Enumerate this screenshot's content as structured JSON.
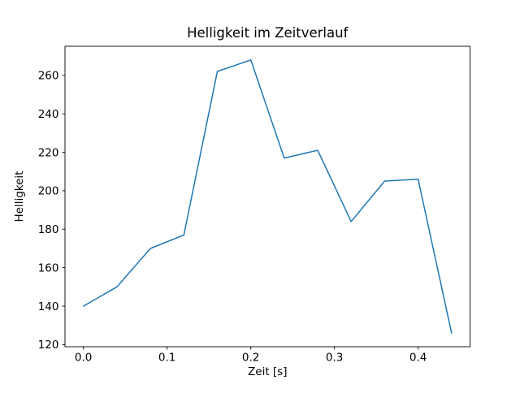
{
  "figure": {
    "background": "#ffffff",
    "plot_background": "#ffffff",
    "spine_color": "#000000",
    "text_color": "#000000"
  },
  "chart_data": {
    "type": "line",
    "title": "Helligkeit im Zeitverlauf",
    "xlabel": "Zeit [s]",
    "ylabel": "Helligkeit",
    "x": [
      0.0,
      0.04,
      0.08,
      0.12,
      0.16,
      0.2,
      0.24,
      0.28,
      0.32,
      0.36,
      0.4,
      0.44
    ],
    "y": [
      140,
      150,
      170,
      177,
      262,
      268,
      217,
      221,
      184,
      205,
      206,
      126
    ],
    "series_name": "Helligkeit",
    "line_color": "#1f77b4",
    "line_width": 1.5,
    "marker": "none",
    "grid": false,
    "legend_position": "none",
    "xlim": [
      -0.022,
      0.462
    ],
    "ylim": [
      118.9,
      275.1
    ],
    "x_ticks": {
      "values": [
        0.0,
        0.1,
        0.2,
        0.3,
        0.4
      ],
      "labels": [
        "0.0",
        "0.1",
        "0.2",
        "0.3",
        "0.4"
      ]
    },
    "y_ticks": {
      "values": [
        120,
        140,
        160,
        180,
        200,
        220,
        240,
        260
      ],
      "labels": [
        "120",
        "140",
        "160",
        "180",
        "200",
        "220",
        "240",
        "260"
      ]
    }
  }
}
